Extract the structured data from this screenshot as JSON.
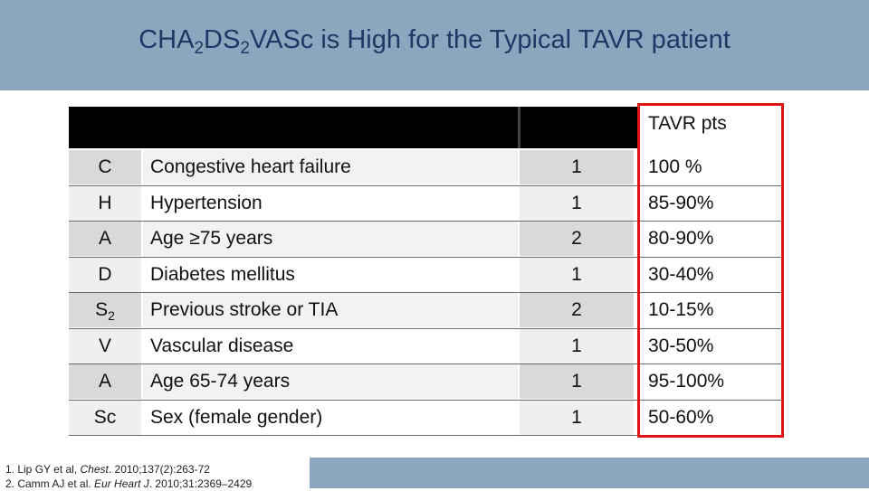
{
  "title": {
    "part1": "CHA",
    "sub1": "2",
    "part2": "DS",
    "sub2": "2",
    "part3": "VASc is High for the Typical TAVR patient"
  },
  "table": {
    "header_tavr": "TAVR pts",
    "rows": [
      {
        "letter": "C",
        "letter_sub": "",
        "desc": "Congestive heart failure",
        "points": "1",
        "tavr": "100 %"
      },
      {
        "letter": "H",
        "letter_sub": "",
        "desc": "Hypertension",
        "points": "1",
        "tavr": "85-90%"
      },
      {
        "letter": "A",
        "letter_sub": "",
        "desc": "Age ≥75 years",
        "points": "2",
        "tavr": "80-90%"
      },
      {
        "letter": "D",
        "letter_sub": "",
        "desc": "Diabetes mellitus",
        "points": "1",
        "tavr": "30-40%"
      },
      {
        "letter": "S",
        "letter_sub": "2",
        "desc": "Previous stroke or TIA",
        "points": "2",
        "tavr": "10-15%"
      },
      {
        "letter": "V",
        "letter_sub": "",
        "desc": "Vascular disease",
        "points": "1",
        "tavr": "30-50%"
      },
      {
        "letter": "A",
        "letter_sub": "",
        "desc": "Age 65-74 years",
        "points": "1",
        "tavr": "95-100%"
      },
      {
        "letter": "Sc",
        "letter_sub": "",
        "desc": "Sex (female gender)",
        "points": "1",
        "tavr": "50-60%"
      }
    ]
  },
  "references": {
    "ref1_prefix": "1.   Lip GY et al, ",
    "ref1_journal": "Chest",
    "ref1_suffix": ". 2010;137(2):263-72",
    "ref2_prefix": "2.  Camm AJ et al. ",
    "ref2_journal": "Eur Heart J",
    "ref2_suffix": ". 2010;31:2369–2429"
  },
  "colors": {
    "title_bar": "#8ca6c0",
    "title_text": "#1f3864",
    "highlight_border": "#e01414"
  }
}
